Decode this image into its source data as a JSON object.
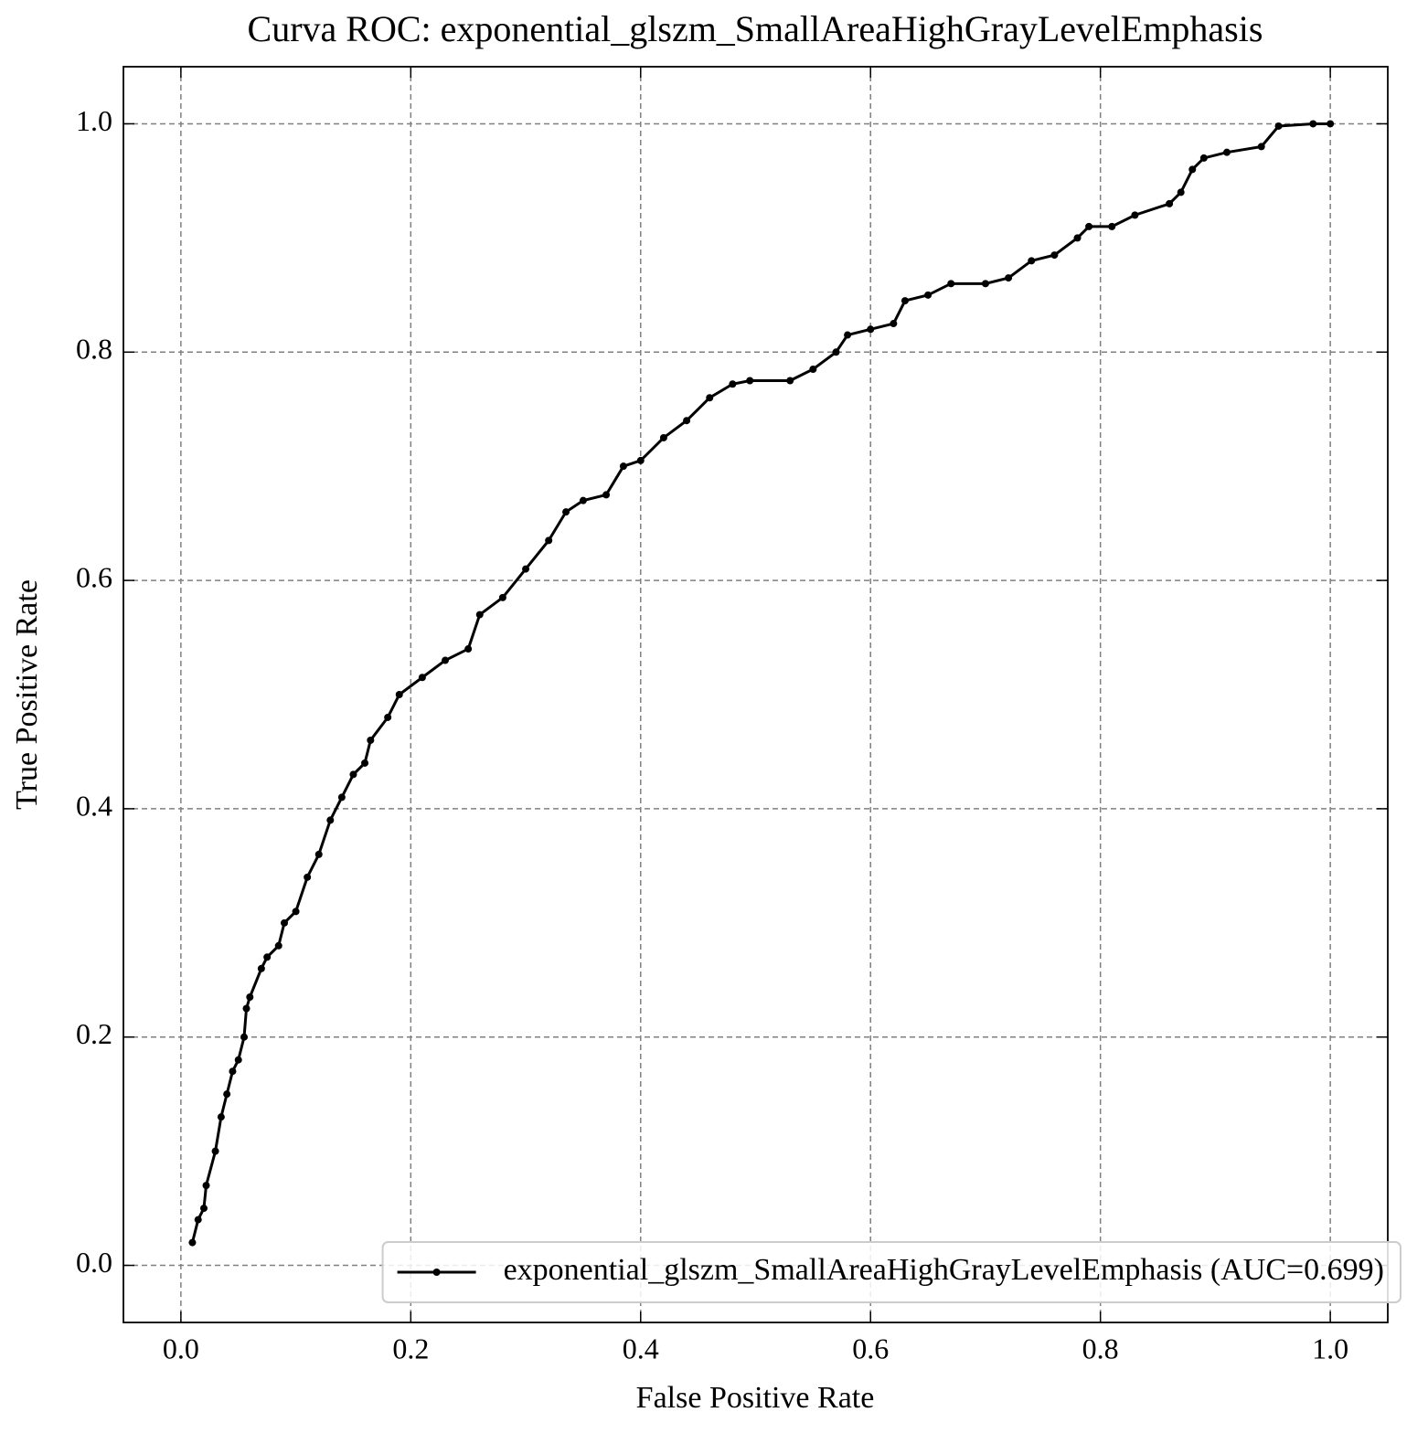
{
  "chart_data": {
    "type": "line",
    "title": "Curva ROC: exponential_glszm_SmallAreaHighGrayLevelEmphasis",
    "xlabel": "False Positive Rate",
    "ylabel": "True Positive Rate",
    "xlim": [
      -0.05,
      1.05
    ],
    "ylim": [
      -0.05,
      1.05
    ],
    "xticks": [
      {
        "value": 0,
        "label": "0.0"
      },
      0.2,
      0.4,
      0.6,
      0.8,
      {
        "value": 1,
        "label": "1.0"
      }
    ],
    "yticks": [
      {
        "value": 0,
        "label": "0.0"
      },
      0.2,
      0.4,
      0.6,
      0.8,
      {
        "value": 1,
        "label": "1.0"
      }
    ],
    "grid": true,
    "legend": "lower right",
    "series": [
      {
        "name": "exponential_glszm_SmallAreaHighGrayLevelEmphasis (AUC=0.699)",
        "color": "#000000",
        "x": [
          0.01,
          0.015,
          0.02,
          0.022,
          0.03,
          0.035,
          0.04,
          0.045,
          0.05,
          0.055,
          0.057,
          0.06,
          0.07,
          0.075,
          0.085,
          0.09,
          0.1,
          0.11,
          0.12,
          0.13,
          0.14,
          0.15,
          0.16,
          0.165,
          0.18,
          0.19,
          0.21,
          0.23,
          0.25,
          0.26,
          0.28,
          0.3,
          0.32,
          0.335,
          0.35,
          0.37,
          0.385,
          0.4,
          0.42,
          0.44,
          0.46,
          0.48,
          0.495,
          0.53,
          0.55,
          0.57,
          0.58,
          0.6,
          0.62,
          0.63,
          0.65,
          0.67,
          0.7,
          0.72,
          0.74,
          0.76,
          0.78,
          0.79,
          0.81,
          0.83,
          0.86,
          0.87,
          0.88,
          0.89,
          0.91,
          0.94,
          0.955,
          0.985,
          1.0
        ],
        "values": [
          0.02,
          0.04,
          0.05,
          0.07,
          0.1,
          0.13,
          0.15,
          0.17,
          0.18,
          0.2,
          0.225,
          0.235,
          0.26,
          0.27,
          0.28,
          0.3,
          0.31,
          0.34,
          0.36,
          0.39,
          0.41,
          0.43,
          0.44,
          0.46,
          0.48,
          0.5,
          0.515,
          0.53,
          0.54,
          0.57,
          0.585,
          0.61,
          0.635,
          0.66,
          0.67,
          0.675,
          0.7,
          0.705,
          0.725,
          0.74,
          0.76,
          0.772,
          0.775,
          0.775,
          0.785,
          0.8,
          0.815,
          0.82,
          0.825,
          0.845,
          0.85,
          0.86,
          0.86,
          0.865,
          0.88,
          0.885,
          0.9,
          0.91,
          0.91,
          0.92,
          0.93,
          0.94,
          0.96,
          0.97,
          0.975,
          0.98,
          0.998,
          1.0,
          1.0
        ]
      }
    ]
  }
}
